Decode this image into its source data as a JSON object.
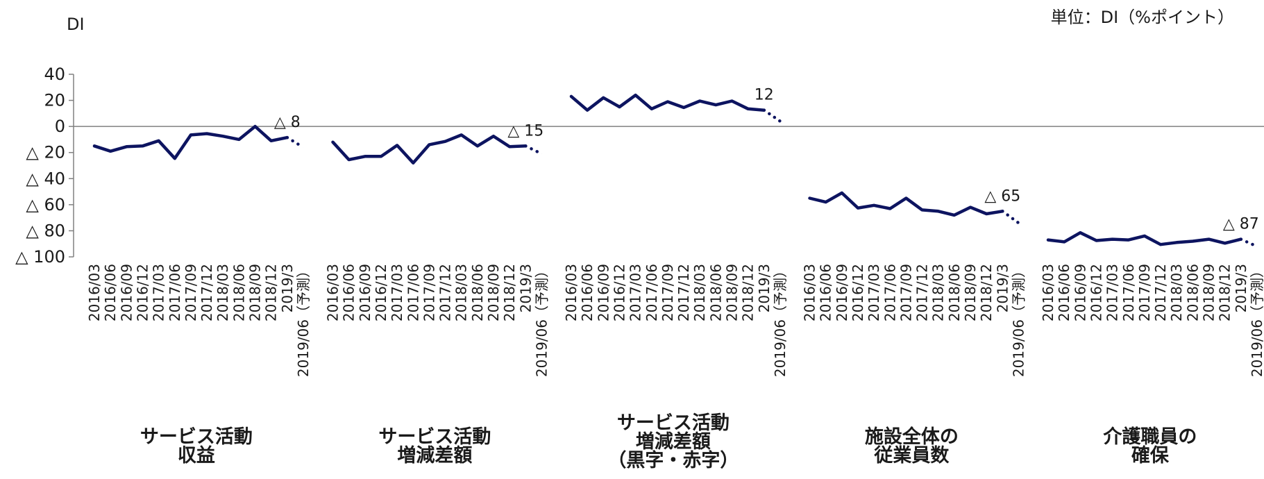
{
  "chart_data": {
    "type": "line",
    "ylabel": "DI",
    "unit_note": "単位：DI（%ポイント）",
    "ylim": [
      -100,
      40
    ],
    "yticks": [
      {
        "value": 40,
        "label": "40"
      },
      {
        "value": 20,
        "label": "20"
      },
      {
        "value": 0,
        "label": "0"
      },
      {
        "value": -20,
        "label": "△ 20"
      },
      {
        "value": -40,
        "label": "△ 40"
      },
      {
        "value": -60,
        "label": "△ 60"
      },
      {
        "value": -80,
        "label": "△ 80"
      },
      {
        "value": -100,
        "label": "△ 100"
      }
    ],
    "grid": false,
    "colors": {
      "line": "#0d1460",
      "zero_line": "#808080"
    },
    "categories": [
      "2016/03",
      "2016/06",
      "2016/09",
      "2016/12",
      "2017/03",
      "2017/06",
      "2017/09",
      "2017/12",
      "2018/03",
      "2018/06",
      "2018/09",
      "2018/12",
      "2019/3",
      "2019/06（予測）"
    ],
    "forecast_index": 13,
    "panels": [
      {
        "label_lines": [
          "サービス活動",
          "収益"
        ],
        "values": [
          -15,
          -19,
          -15.5,
          -15,
          -11,
          -24.5,
          -6.5,
          -5.5,
          -7.5,
          -10,
          0,
          -11,
          -8.5,
          -16
        ],
        "last_label": "△ 8"
      },
      {
        "label_lines": [
          "サービス活動",
          "増減差額"
        ],
        "values": [
          -12,
          -25.5,
          -23,
          -23,
          -14.5,
          -28,
          -14,
          -11.5,
          -6.5,
          -15,
          -7.5,
          -15.5,
          -15,
          -21
        ],
        "last_label": "△ 15"
      },
      {
        "label_lines": [
          "サービス活動",
          "増減差額",
          "（黒字・赤字）"
        ],
        "values": [
          23,
          12.5,
          22,
          15,
          24,
          13.5,
          19,
          14.5,
          19.5,
          16.5,
          19.5,
          13.5,
          12.5,
          4
        ],
        "last_label": "12"
      },
      {
        "label_lines": [
          "施設全体の",
          "従業員数"
        ],
        "values": [
          -55,
          -58,
          -51,
          -62.5,
          -60.5,
          -63,
          -55,
          -64,
          -65,
          -68,
          -62,
          -67,
          -65,
          -74
        ],
        "last_label": "△ 65"
      },
      {
        "label_lines": [
          "介護職員の",
          "確保"
        ],
        "values": [
          -87,
          -88.5,
          -81.5,
          -87.5,
          -86.5,
          -87,
          -84,
          -90.5,
          -89,
          -88,
          -86.5,
          -89.5,
          -86.5,
          -92
        ],
        "last_label": "△ 87"
      }
    ]
  }
}
